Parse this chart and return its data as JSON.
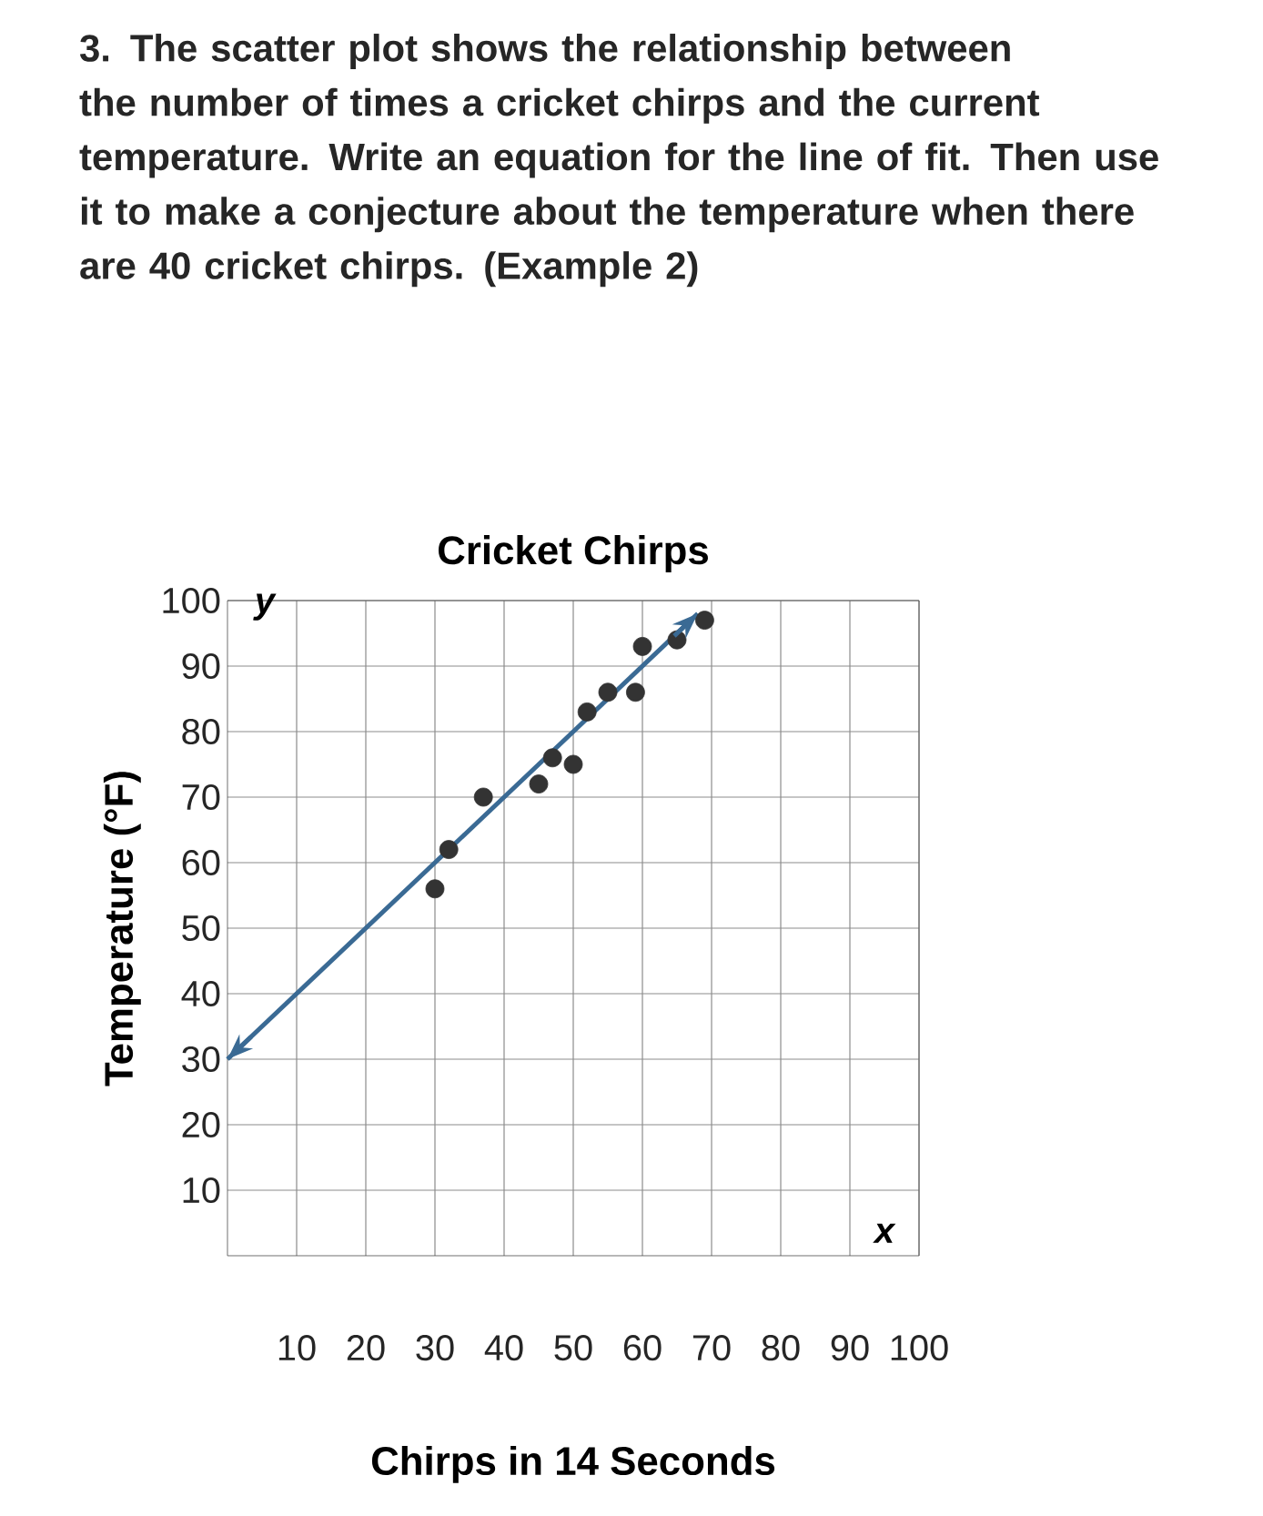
{
  "chart_data": {
    "type": "scatter",
    "title": "Cricket Chirps",
    "xlabel": "Chirps in 14 Seconds",
    "ylabel": "Temperature (°F)",
    "annotations": [
      "3. The scatter plot shows the relationship between the number of times a cricket chirps and the current temperature. Write an equation for the line of fit. Then use it to make a conjecture about the temperature when there are 40 cricket chirps. **(Example 2)**",
      "y",
      "x"
    ],
    "xlim": [
      0,
      100
    ],
    "ylim": [
      0,
      100
    ],
    "xticks": [
      10,
      20,
      30,
      40,
      50,
      60,
      70,
      80,
      90,
      100
    ],
    "yticks": [
      10,
      20,
      30,
      40,
      50,
      60,
      70,
      80,
      90,
      100
    ],
    "grid": true,
    "legend": false,
    "series": [
      {
        "color": "#333333",
        "marker": "circle",
        "x": [
          30,
          32,
          37,
          45,
          47,
          50,
          52,
          55,
          59,
          60,
          65,
          69
        ],
        "values": [
          56,
          62,
          70,
          72,
          76,
          75,
          83,
          86,
          86,
          93,
          94,
          97
        ]
      },
      {
        "type": "line",
        "color": "#3a6a94",
        "marker": "none",
        "line_style": "solid",
        "x": [
          0,
          68
        ],
        "values": [
          30,
          98
        ]
      }
    ]
  }
}
